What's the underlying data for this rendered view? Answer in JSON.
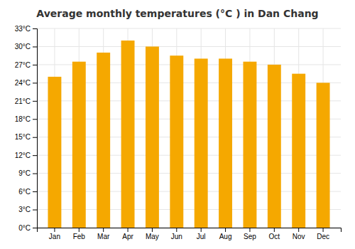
{
  "chart_data": {
    "type": "bar",
    "title": "Average monthly temperatures (°C ) in Dan Chang",
    "categories": [
      "Jan",
      "Feb",
      "Mar",
      "Apr",
      "May",
      "Jun",
      "Jul",
      "Aug",
      "Sep",
      "Oct",
      "Nov",
      "Dec"
    ],
    "values": [
      25.0,
      27.5,
      29.0,
      31.0,
      30.0,
      28.5,
      28.0,
      28.0,
      27.5,
      27.0,
      25.5,
      24.0
    ],
    "color": "#F5A800",
    "ylim": [
      0,
      33
    ],
    "yticks": [
      {
        "value": 0,
        "label": "0°C"
      },
      {
        "value": 3,
        "label": "3°C"
      },
      {
        "value": 6,
        "label": "6°C"
      },
      {
        "value": 9,
        "label": "9°C"
      },
      {
        "value": 12,
        "label": "12°C"
      },
      {
        "value": 15,
        "label": "15°C"
      },
      {
        "value": 18,
        "label": "18°C"
      },
      {
        "value": 21,
        "label": "21°C"
      },
      {
        "value": 24,
        "label": "24°C"
      },
      {
        "value": 27,
        "label": "27°C"
      },
      {
        "value": 30,
        "label": "30°C"
      },
      {
        "value": 33,
        "label": "33°C"
      }
    ],
    "grid": true
  }
}
